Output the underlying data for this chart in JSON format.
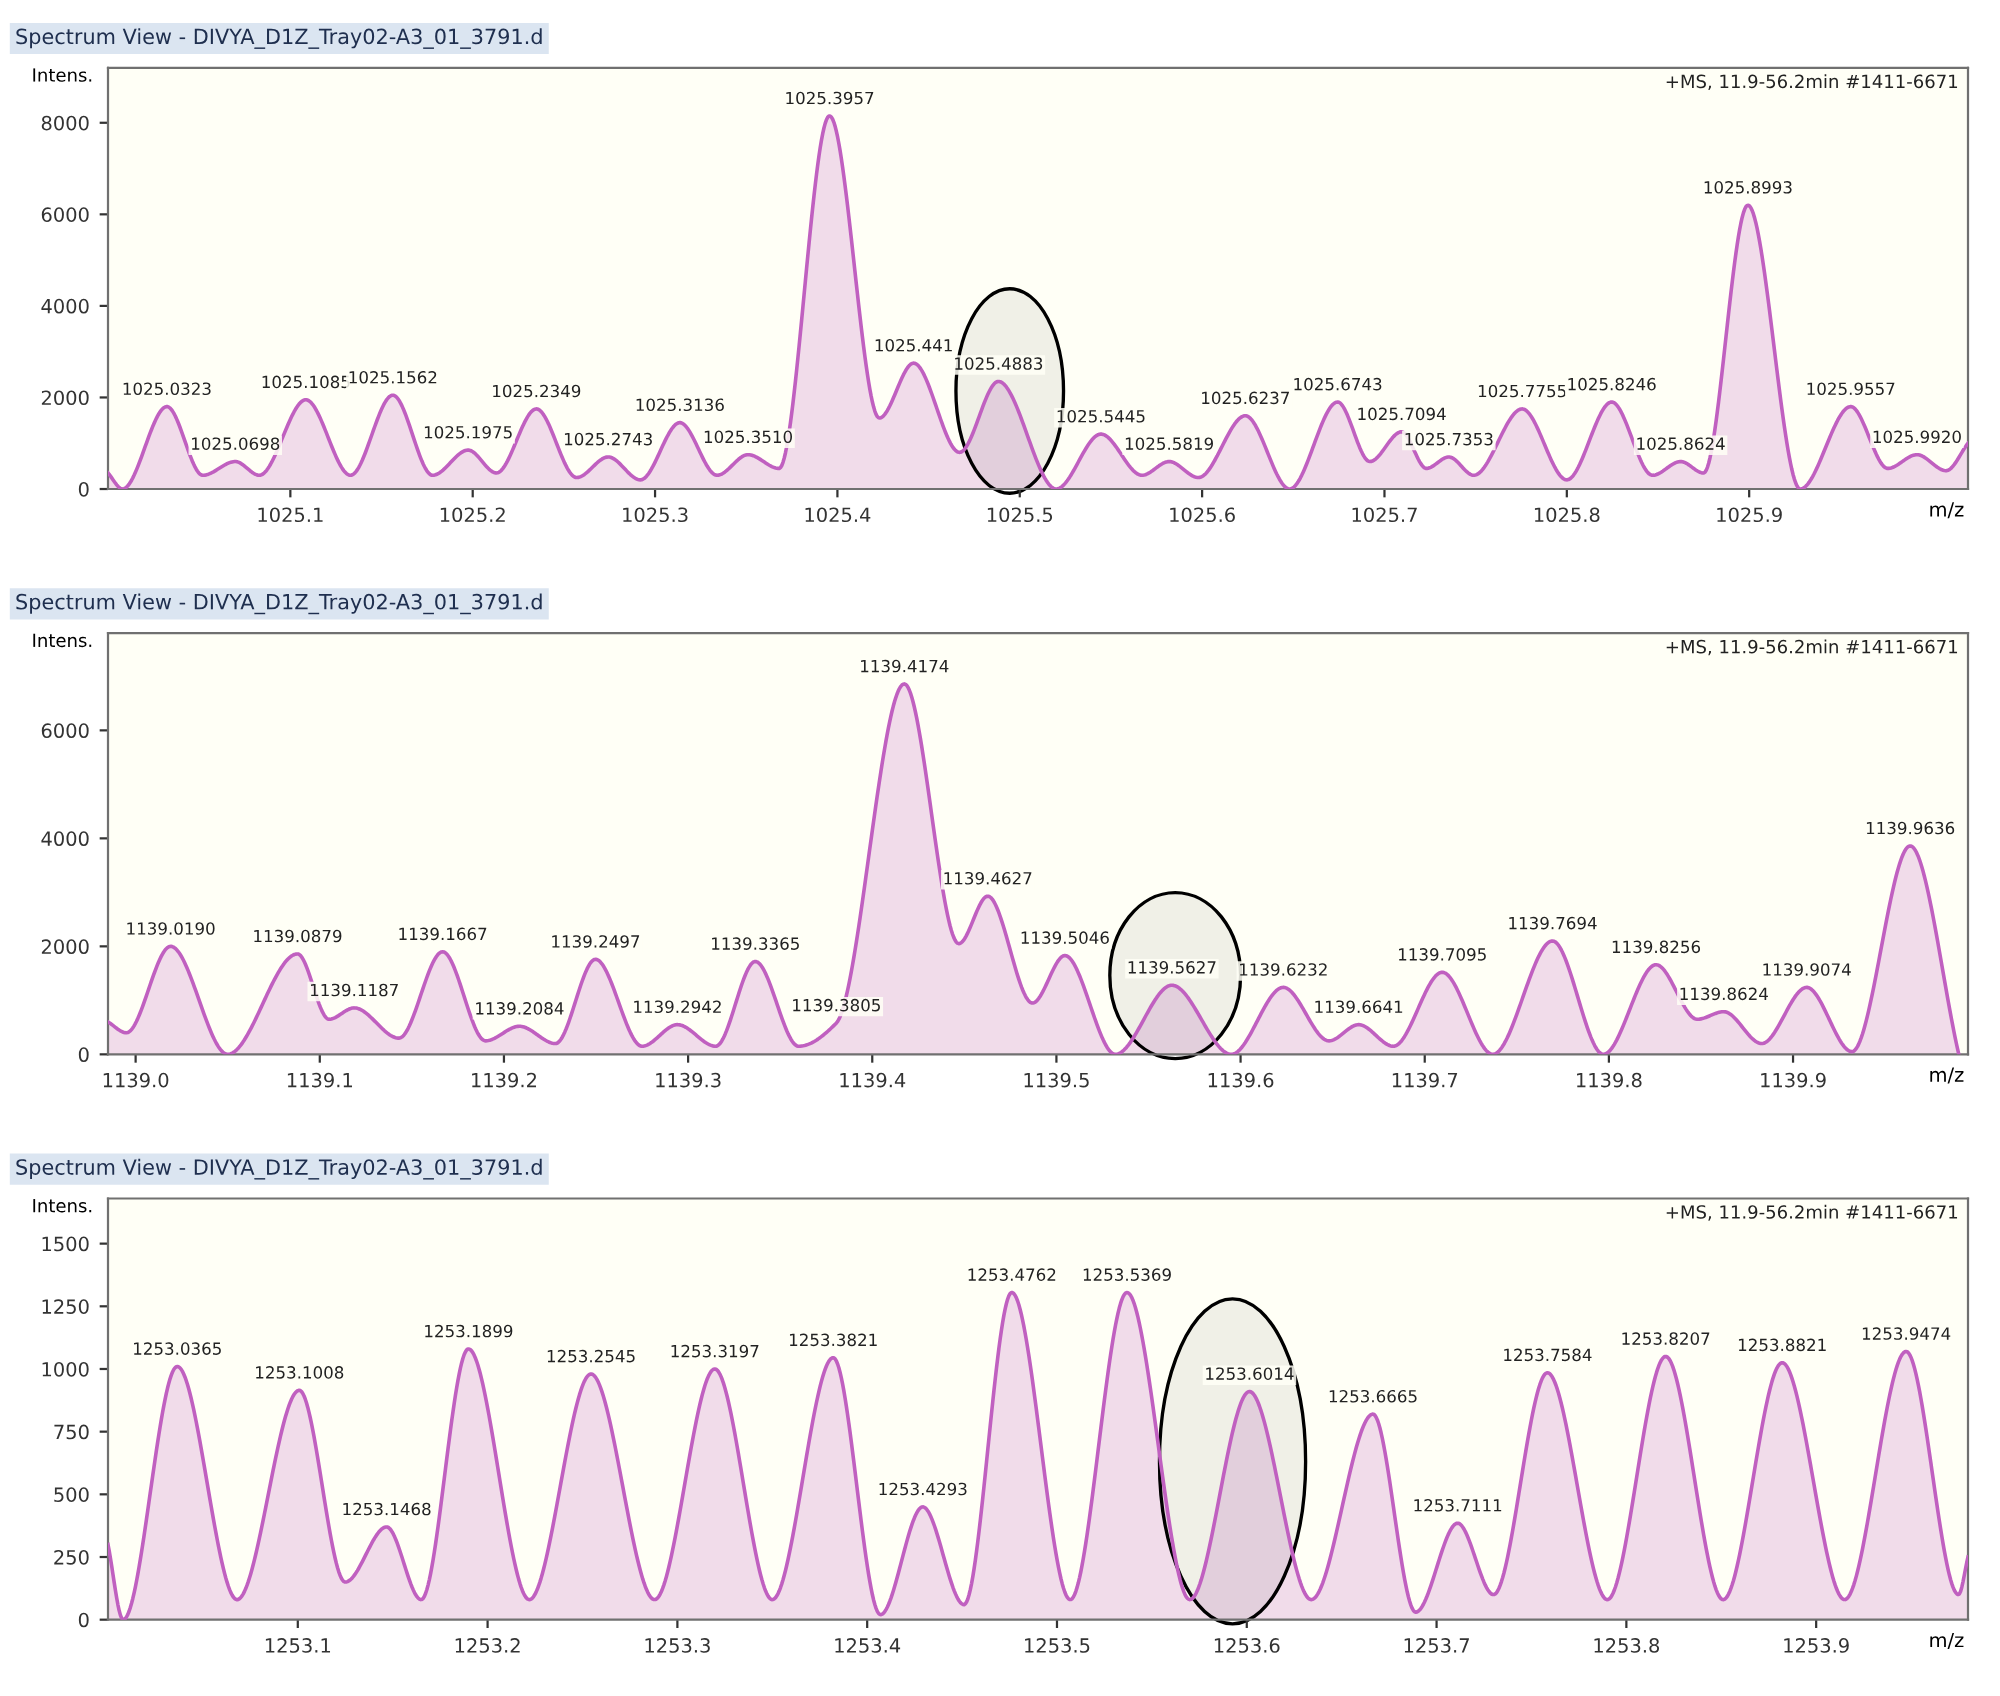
{
  "chart_data": [
    {
      "type": "area",
      "title": "Spectrum View - DIVYA_D1Z_Tray02-A3_01_3791.d",
      "xlabel": "m/z",
      "ylabel": "Intens.",
      "x": [
        1025.0,
        1025.008,
        1025.0323,
        1025.052,
        1025.0698,
        1025.083,
        1025.1085,
        1025.133,
        1025.1562,
        1025.178,
        1025.1975,
        1025.213,
        1025.2349,
        1025.257,
        1025.2743,
        1025.292,
        1025.3136,
        1025.334,
        1025.351,
        1025.368,
        1025.3957,
        1025.423,
        1025.4418,
        1025.467,
        1025.4883,
        1025.52,
        1025.5445,
        1025.567,
        1025.5819,
        1025.598,
        1025.6237,
        1025.648,
        1025.6743,
        1025.692,
        1025.7094,
        1025.723,
        1025.7353,
        1025.749,
        1025.7755,
        1025.8,
        1025.8246,
        1025.847,
        1025.8624,
        1025.875,
        1025.8993,
        1025.928,
        1025.9557,
        1025.976,
        1025.992,
        1026.008,
        1026.02
      ],
      "series": [
        {
          "color": "#c060c0",
          "values": [
            350,
            0,
            1800,
            300,
            600,
            300,
            1950,
            300,
            2050,
            300,
            850,
            350,
            1750,
            250,
            700,
            200,
            1450,
            300,
            750,
            450,
            8150,
            1550,
            2750,
            800,
            2350,
            0,
            1200,
            300,
            600,
            250,
            1600,
            0,
            1900,
            600,
            1250,
            450,
            700,
            300,
            1750,
            200,
            1900,
            300,
            600,
            350,
            6200,
            0,
            1800,
            450,
            750,
            400,
            1000
          ]
        }
      ],
      "xlim": [
        1025.0,
        1026.02
      ],
      "ylim": [
        0,
        9200
      ],
      "xticks": [
        1025.1,
        1025.2,
        1025.3,
        1025.4,
        1025.5,
        1025.6,
        1025.7,
        1025.8,
        1025.9
      ],
      "yticks": [
        0,
        2000,
        4000,
        6000,
        8000
      ],
      "bands": [
        {
          "axis": "x",
          "from": 1025.465,
          "to": 1025.524,
          "color": "#000000"
        }
      ],
      "annotations": [
        "+MS, 11.9-56.2min #1411-6671",
        {
          "text": "1025.0323",
          "x": 1025.0323,
          "y": 1800
        },
        {
          "text": "1025.0698",
          "x": 1025.0698,
          "y": 600
        },
        {
          "text": "1025.1085",
          "x": 1025.1085,
          "y": 1950
        },
        {
          "text": "1025.1562",
          "x": 1025.1562,
          "y": 2050
        },
        {
          "text": "1025.1975",
          "x": 1025.1975,
          "y": 850
        },
        {
          "text": "1025.2349",
          "x": 1025.2349,
          "y": 1750
        },
        {
          "text": "1025.2743",
          "x": 1025.2743,
          "y": 700
        },
        {
          "text": "1025.3136",
          "x": 1025.3136,
          "y": 1450
        },
        {
          "text": "1025.3510",
          "x": 1025.351,
          "y": 750
        },
        {
          "text": "1025.3957",
          "x": 1025.3957,
          "y": 8150
        },
        {
          "text": "1025.441",
          "x": 1025.4418,
          "y": 2750
        },
        {
          "text": "1025.4883",
          "x": 1025.4883,
          "y": 2350
        },
        {
          "text": "1025.5445",
          "x": 1025.5445,
          "y": 1200
        },
        {
          "text": "1025.5819",
          "x": 1025.5819,
          "y": 600
        },
        {
          "text": "1025.6237",
          "x": 1025.6237,
          "y": 1600
        },
        {
          "text": "1025.6743",
          "x": 1025.6743,
          "y": 1900
        },
        {
          "text": "1025.7094",
          "x": 1025.7094,
          "y": 1250
        },
        {
          "text": "1025.7353",
          "x": 1025.7353,
          "y": 700
        },
        {
          "text": "1025.7755",
          "x": 1025.7755,
          "y": 1750
        },
        {
          "text": "1025.8246",
          "x": 1025.8246,
          "y": 1900
        },
        {
          "text": "1025.8624",
          "x": 1025.8624,
          "y": 600
        },
        {
          "text": "1025.8993",
          "x": 1025.8993,
          "y": 6200
        },
        {
          "text": "1025.9557",
          "x": 1025.9557,
          "y": 1800
        },
        {
          "text": "1025.9920",
          "x": 1025.992,
          "y": 750
        }
      ]
    },
    {
      "type": "area",
      "title": "Spectrum View - DIVYA_D1Z_Tray02-A3_01_3791.d",
      "xlabel": "m/z",
      "ylabel": "Intens.",
      "x": [
        1138.985,
        1138.995,
        1139.019,
        1139.05,
        1139.0879,
        1139.105,
        1139.1187,
        1139.143,
        1139.1667,
        1139.19,
        1139.2084,
        1139.228,
        1139.2497,
        1139.275,
        1139.2942,
        1139.315,
        1139.3365,
        1139.36,
        1139.3805,
        1139.4174,
        1139.447,
        1139.4627,
        1139.487,
        1139.5046,
        1139.532,
        1139.5627,
        1139.595,
        1139.6232,
        1139.648,
        1139.6641,
        1139.683,
        1139.7095,
        1139.737,
        1139.7694,
        1139.797,
        1139.8256,
        1139.848,
        1139.8624,
        1139.883,
        1139.9074,
        1139.932,
        1139.9636,
        1139.99
      ],
      "series": [
        {
          "color": "#c060c0",
          "values": [
            600,
            400,
            2000,
            0,
            1860,
            650,
            860,
            300,
            1900,
            250,
            520,
            200,
            1760,
            150,
            550,
            150,
            1720,
            150,
            580,
            6860,
            2050,
            2930,
            950,
            1830,
            0,
            1280,
            0,
            1240,
            250,
            550,
            150,
            1520,
            0,
            2100,
            0,
            1660,
            650,
            790,
            200,
            1240,
            50,
            3860,
            0
          ]
        }
      ],
      "xlim": [
        1138.985,
        1139.995
      ],
      "ylim": [
        0,
        7800
      ],
      "xticks": [
        {
          "value": 1139.0,
          "label": "1139.0"
        },
        1139.1,
        1139.2,
        1139.3,
        1139.4,
        1139.5,
        1139.6,
        1139.7,
        1139.8,
        1139.9
      ],
      "yticks": [
        0,
        2000,
        4000,
        6000
      ],
      "bands": [
        {
          "axis": "x",
          "from": 1139.529,
          "to": 1139.6,
          "color": "#000000"
        }
      ],
      "annotations": [
        "+MS, 11.9-56.2min #1411-6671",
        {
          "text": "1139.0190",
          "x": 1139.019,
          "y": 2000
        },
        {
          "text": "1139.0879",
          "x": 1139.0879,
          "y": 1860
        },
        {
          "text": "1139.1187",
          "x": 1139.1187,
          "y": 860
        },
        {
          "text": "1139.1667",
          "x": 1139.1667,
          "y": 1900
        },
        {
          "text": "1139.2084",
          "x": 1139.2084,
          "y": 520
        },
        {
          "text": "1139.2497",
          "x": 1139.2497,
          "y": 1760
        },
        {
          "text": "1139.2942",
          "x": 1139.2942,
          "y": 550
        },
        {
          "text": "1139.3365",
          "x": 1139.3365,
          "y": 1720
        },
        {
          "text": "1139.3805",
          "x": 1139.3805,
          "y": 580
        },
        {
          "text": "1139.4174",
          "x": 1139.4174,
          "y": 6860
        },
        {
          "text": "1139.4627",
          "x": 1139.4627,
          "y": 2930
        },
        {
          "text": "1139.5046",
          "x": 1139.5046,
          "y": 1830
        },
        {
          "text": "1139.5627",
          "x": 1139.5627,
          "y": 1280
        },
        {
          "text": "1139.6232",
          "x": 1139.6232,
          "y": 1240
        },
        {
          "text": "1139.6641",
          "x": 1139.6641,
          "y": 550
        },
        {
          "text": "1139.7095",
          "x": 1139.7095,
          "y": 1520
        },
        {
          "text": "1139.7694",
          "x": 1139.7694,
          "y": 2100
        },
        {
          "text": "1139.8256",
          "x": 1139.8256,
          "y": 1660
        },
        {
          "text": "1139.8624",
          "x": 1139.8624,
          "y": 790
        },
        {
          "text": "1139.9074",
          "x": 1139.9074,
          "y": 1240
        },
        {
          "text": "1139.9636",
          "x": 1139.9636,
          "y": 3860
        }
      ]
    },
    {
      "type": "area",
      "title": "Spectrum View - DIVYA_D1Z_Tray02-A3_01_3791.d",
      "xlabel": "m/z",
      "ylabel": "Intens.",
      "x": [
        1253.0,
        1253.008,
        1253.0365,
        1253.068,
        1253.1008,
        1253.125,
        1253.1468,
        1253.165,
        1253.1899,
        1253.222,
        1253.2545,
        1253.288,
        1253.3197,
        1253.35,
        1253.3821,
        1253.407,
        1253.4293,
        1253.451,
        1253.4762,
        1253.507,
        1253.5369,
        1253.57,
        1253.6014,
        1253.634,
        1253.6665,
        1253.689,
        1253.7111,
        1253.73,
        1253.7584,
        1253.79,
        1253.8207,
        1253.851,
        1253.8821,
        1253.915,
        1253.9474,
        1253.975,
        1253.98
      ],
      "series": [
        {
          "color": "#c060c0",
          "values": [
            300,
            0,
            1010,
            80,
            915,
            150,
            370,
            80,
            1080,
            80,
            980,
            80,
            1000,
            80,
            1045,
            20,
            450,
            60,
            1305,
            80,
            1305,
            80,
            910,
            80,
            820,
            30,
            385,
            100,
            985,
            80,
            1050,
            80,
            1025,
            80,
            1070,
            100,
            250
          ]
        }
      ],
      "xlim": [
        1253.0,
        1253.98
      ],
      "ylim": [
        0,
        1680
      ],
      "xticks": [
        1253.1,
        1253.2,
        1253.3,
        1253.4,
        1253.5,
        1253.6,
        1253.7,
        1253.8,
        1253.9
      ],
      "yticks": [
        0,
        250,
        500,
        750,
        1000,
        1250,
        1500
      ],
      "bands": [
        {
          "axis": "x",
          "from": 1253.554,
          "to": 1253.631,
          "color": "#000000"
        }
      ],
      "annotations": [
        "+MS, 11.9-56.2min #1411-6671",
        {
          "text": "1253.0365",
          "x": 1253.0365,
          "y": 1010
        },
        {
          "text": "1253.1008",
          "x": 1253.1008,
          "y": 915
        },
        {
          "text": "1253.1468",
          "x": 1253.1468,
          "y": 370
        },
        {
          "text": "1253.1899",
          "x": 1253.1899,
          "y": 1080
        },
        {
          "text": "1253.2545",
          "x": 1253.2545,
          "y": 980
        },
        {
          "text": "1253.3197",
          "x": 1253.3197,
          "y": 1000
        },
        {
          "text": "1253.3821",
          "x": 1253.3821,
          "y": 1045
        },
        {
          "text": "1253.4293",
          "x": 1253.4293,
          "y": 450
        },
        {
          "text": "1253.4762",
          "x": 1253.4762,
          "y": 1305
        },
        {
          "text": "1253.5369",
          "x": 1253.5369,
          "y": 1305
        },
        {
          "text": "1253.6014",
          "x": 1253.6014,
          "y": 910
        },
        {
          "text": "1253.6665",
          "x": 1253.6665,
          "y": 820
        },
        {
          "text": "1253.7111",
          "x": 1253.7111,
          "y": 385
        },
        {
          "text": "1253.7584",
          "x": 1253.7584,
          "y": 985
        },
        {
          "text": "1253.8207",
          "x": 1253.8207,
          "y": 1050
        },
        {
          "text": "1253.8821",
          "x": 1253.8821,
          "y": 1025
        },
        {
          "text": "1253.9474",
          "x": 1253.9474,
          "y": 1070
        }
      ]
    }
  ]
}
